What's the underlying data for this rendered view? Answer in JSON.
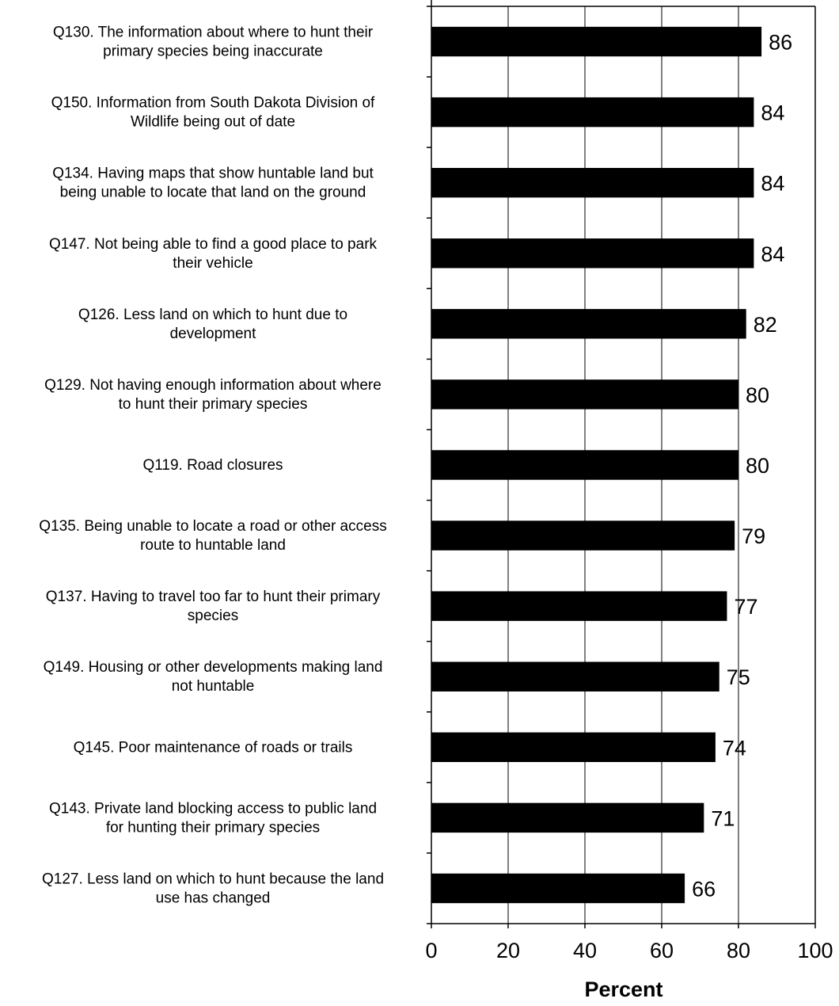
{
  "chart_data": {
    "type": "bar",
    "orientation": "horizontal",
    "title": "",
    "xlabel": "Percent",
    "ylabel": "",
    "xlim": [
      0,
      100
    ],
    "xticks": [
      0,
      20,
      40,
      60,
      80,
      100
    ],
    "grid": "vertical",
    "legend": "none",
    "bar_color": "#000000",
    "categories": [
      [
        "Q130. The information about where to hunt their",
        "primary species being inaccurate"
      ],
      [
        "Q150. Information from South Dakota Division of",
        "Wildlife being out of date"
      ],
      [
        "Q134. Having maps that show huntable land but",
        "being unable to locate that land on the ground"
      ],
      [
        "Q147. Not being able to find a good place to park",
        "their vehicle"
      ],
      [
        "Q126. Less land on which to hunt due to",
        "development"
      ],
      [
        "Q129. Not having enough information about where",
        "to hunt their primary species"
      ],
      [
        "Q119. Road closures"
      ],
      [
        "Q135. Being unable to locate a road or other access",
        "route to huntable land"
      ],
      [
        "Q137. Having to travel too far to hunt their primary",
        "species"
      ],
      [
        "Q149. Housing or other developments making land",
        "not huntable"
      ],
      [
        "Q145. Poor maintenance of roads or trails"
      ],
      [
        "Q143. Private land blocking access to public land",
        "for hunting their primary species"
      ],
      [
        "Q127. Less land on which to hunt because the land",
        "use has changed"
      ]
    ],
    "values": [
      86,
      84,
      84,
      84,
      82,
      80,
      80,
      79,
      77,
      75,
      74,
      71,
      66
    ]
  }
}
